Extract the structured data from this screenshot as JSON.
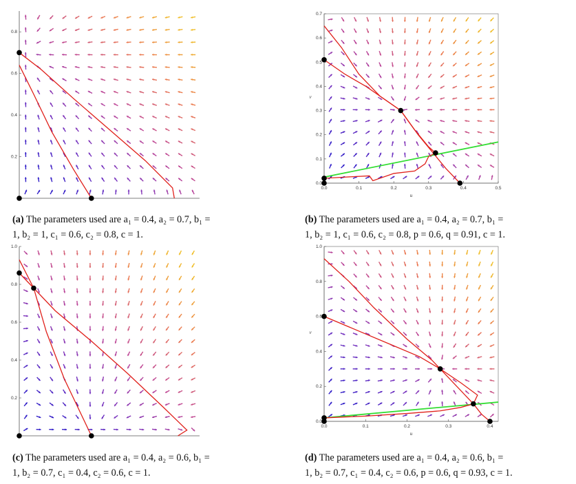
{
  "figure": {
    "panels": [
      {
        "id": "a",
        "caption_label": "(a)",
        "caption_line1": "The parameters used are a₁ = 0.4, a₂ = 0.7, b₁ =",
        "caption_line2": "1, b₂ = 1, c₁ = 0.6, c₂ = 0.8, c = 1.",
        "chart_data": {
          "type": "vector-field",
          "xlim": [
            0,
            1.0
          ],
          "ylim": [
            0,
            0.9
          ],
          "yticks": [
            "0.2",
            "0.4",
            "0.6",
            "0.8"
          ],
          "xticks": [],
          "xlabel": "",
          "ylabel": "",
          "equilibria": [
            [
              0,
              0
            ],
            [
              0,
              0.7
            ],
            [
              0.4,
              0
            ]
          ],
          "red_nullclines": [
            [
              [
                0,
                0.7
              ],
              [
                0.12,
                0.62
              ],
              [
                0.3,
                0.48
              ],
              [
                0.5,
                0.33
              ],
              [
                0.7,
                0.18
              ],
              [
                0.85,
                0.05
              ],
              [
                0.86,
                0
              ]
            ],
            [
              [
                0,
                0.64
              ],
              [
                0.08,
                0.5
              ],
              [
                0.18,
                0.32
              ],
              [
                0.3,
                0.14
              ],
              [
                0.4,
                0
              ]
            ]
          ],
          "green_line": []
        }
      },
      {
        "id": "b",
        "caption_label": "(b)",
        "caption_line1": "The parameters used are a₁ = 0.4, a₂ = 0.7, b₁ =",
        "caption_line2": "1, b₂ = 1, c₁ = 0.6, c₂ = 0.8, p = 0.6, q = 0.91, c = 1.",
        "chart_data": {
          "type": "vector-field",
          "xlim": [
            0,
            0.5
          ],
          "ylim": [
            0,
            0.7
          ],
          "xticks": [
            "0.0",
            "0.1",
            "0.2",
            "0.3",
            "0.4",
            "0.5"
          ],
          "yticks": [
            "0.0",
            "0.1",
            "0.2",
            "0.3",
            "0.4",
            "0.5",
            "0.6",
            "0.7"
          ],
          "xlabel": "u",
          "ylabel": "v",
          "equilibria": [
            [
              0,
              0
            ],
            [
              0,
              0.02
            ],
            [
              0,
              0.51
            ],
            [
              0.22,
              0.3
            ],
            [
              0.32,
              0.125
            ],
            [
              0.39,
              0
            ]
          ],
          "red_nullclines": [
            [
              [
                0,
                0.65
              ],
              [
                0.05,
                0.56
              ],
              [
                0.1,
                0.45
              ],
              [
                0.16,
                0.36
              ],
              [
                0.22,
                0.3
              ],
              [
                0.27,
                0.2
              ],
              [
                0.31,
                0.13
              ],
              [
                0.35,
                0.06
              ],
              [
                0.39,
                0
              ]
            ],
            [
              [
                0,
                0.51
              ],
              [
                0.06,
                0.45
              ],
              [
                0.12,
                0.4
              ],
              [
                0.18,
                0.34
              ],
              [
                0.22,
                0.3
              ],
              [
                0.26,
                0.22
              ],
              [
                0.3,
                0.15
              ],
              [
                0.32,
                0.125
              ]
            ],
            [
              [
                0,
                0.02
              ],
              [
                0.06,
                0.025
              ],
              [
                0.13,
                0.03
              ],
              [
                0.14,
                0.01
              ],
              [
                0.2,
                0.04
              ],
              [
                0.26,
                0.05
              ],
              [
                0.29,
                0.08
              ],
              [
                0.3,
                0.11
              ],
              [
                0.32,
                0.125
              ]
            ]
          ],
          "green_line": [
            [
              0,
              0.025
            ],
            [
              0.5,
              0.17
            ]
          ]
        }
      },
      {
        "id": "c",
        "caption_label": "(c)",
        "caption_line1": "The parameters used are a₁ = 0.4, a₂ = 0.6, b₁ =",
        "caption_line2": "1, b₂ = 0.7, c₁ = 0.4, c₂ = 0.6, c = 1.",
        "chart_data": {
          "type": "vector-field",
          "xlim": [
            0,
            1.0
          ],
          "ylim": [
            0,
            1.0
          ],
          "xticks": [],
          "yticks": [
            "0.2",
            "0.4",
            "0.6",
            "0.8",
            "1.0"
          ],
          "xlabel": "",
          "ylabel": "",
          "equilibria": [
            [
              0,
              0
            ],
            [
              0,
              0.86
            ],
            [
              0.08,
              0.78
            ],
            [
              0.4,
              0
            ]
          ],
          "red_nullclines": [
            [
              [
                0,
                0.93
              ],
              [
                0.08,
                0.78
              ],
              [
                0.2,
                0.66
              ],
              [
                0.4,
                0.5
              ],
              [
                0.6,
                0.33
              ],
              [
                0.8,
                0.15
              ],
              [
                0.93,
                0.03
              ],
              [
                0.88,
                0
              ]
            ],
            [
              [
                0,
                0.86
              ],
              [
                0.08,
                0.78
              ],
              [
                0.15,
                0.55
              ],
              [
                0.25,
                0.3
              ],
              [
                0.35,
                0.1
              ],
              [
                0.4,
                0
              ]
            ]
          ],
          "green_line": []
        }
      },
      {
        "id": "d",
        "caption_label": "(d)",
        "caption_line1": "The parameters used are a₁ = 0.4, a₂ = 0.6, b₁ =",
        "caption_line2": "1, b₂ = 0.7, c₁ = 0.4, c₂ = 0.6, p = 0.6, q = 0.93, c = 1.",
        "chart_data": {
          "type": "vector-field",
          "xlim": [
            0,
            0.42
          ],
          "ylim": [
            0,
            1.0
          ],
          "xticks": [
            "0.0",
            "0.1",
            "0.2",
            "0.3",
            "0.4"
          ],
          "yticks": [
            "0.0",
            "0.2",
            "0.4",
            "0.6",
            "0.8",
            "1.0"
          ],
          "xlabel": "u",
          "ylabel": "v",
          "equilibria": [
            [
              0,
              0
            ],
            [
              0,
              0.02
            ],
            [
              0,
              0.6
            ],
            [
              0.28,
              0.3
            ],
            [
              0.36,
              0.1
            ],
            [
              0.4,
              0
            ]
          ],
          "red_nullclines": [
            [
              [
                0,
                0.93
              ],
              [
                0.06,
                0.8
              ],
              [
                0.12,
                0.65
              ],
              [
                0.2,
                0.47
              ],
              [
                0.26,
                0.35
              ],
              [
                0.28,
                0.3
              ],
              [
                0.32,
                0.2
              ],
              [
                0.36,
                0.1
              ],
              [
                0.38,
                0.04
              ],
              [
                0.4,
                0
              ]
            ],
            [
              [
                0,
                0.6
              ],
              [
                0.08,
                0.52
              ],
              [
                0.16,
                0.44
              ],
              [
                0.23,
                0.37
              ],
              [
                0.28,
                0.3
              ],
              [
                0.33,
                0.22
              ],
              [
                0.37,
                0.15
              ],
              [
                0.36,
                0.1
              ]
            ],
            [
              [
                0,
                0.02
              ],
              [
                0.1,
                0.03
              ],
              [
                0.2,
                0.045
              ],
              [
                0.28,
                0.06
              ],
              [
                0.33,
                0.08
              ],
              [
                0.36,
                0.1
              ]
            ]
          ],
          "green_line": [
            [
              0,
              0.02
            ],
            [
              0.42,
              0.11
            ]
          ]
        }
      }
    ]
  }
}
